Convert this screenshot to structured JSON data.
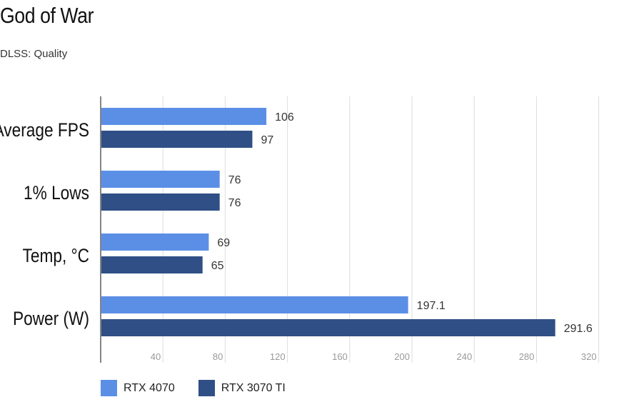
{
  "header": {
    "title": "God of War",
    "subtitle": "DLSS: Quality"
  },
  "colors": {
    "rtx4070": "#5b8fe6",
    "rtx3070ti": "#2f4f86",
    "grid": "#dddddd",
    "axis": "#333333",
    "tick_text": "#999999",
    "label_text": "#111111",
    "value_text": "#333333"
  },
  "chart_data": {
    "type": "bar",
    "orientation": "horizontal",
    "title": "God of War",
    "subtitle": "DLSS: Quality",
    "categories": [
      "Average FPS",
      "1% Lows",
      "Temp, °C",
      "Power (W)"
    ],
    "series": [
      {
        "name": "RTX 4070",
        "values": [
          106,
          76,
          69,
          197.1
        ],
        "labels": [
          "106",
          "76",
          "69",
          "197.1"
        ]
      },
      {
        "name": "RTX 3070 TI",
        "values": [
          97,
          76,
          65,
          291.6
        ],
        "labels": [
          "97",
          "76",
          "65",
          "291.6"
        ]
      }
    ],
    "xlim": [
      0,
      340
    ],
    "xticks": [
      40,
      80,
      120,
      160,
      200,
      240,
      280,
      320
    ],
    "xlabel": "",
    "ylabel": "",
    "legend": "bottom-left",
    "grid": true
  }
}
